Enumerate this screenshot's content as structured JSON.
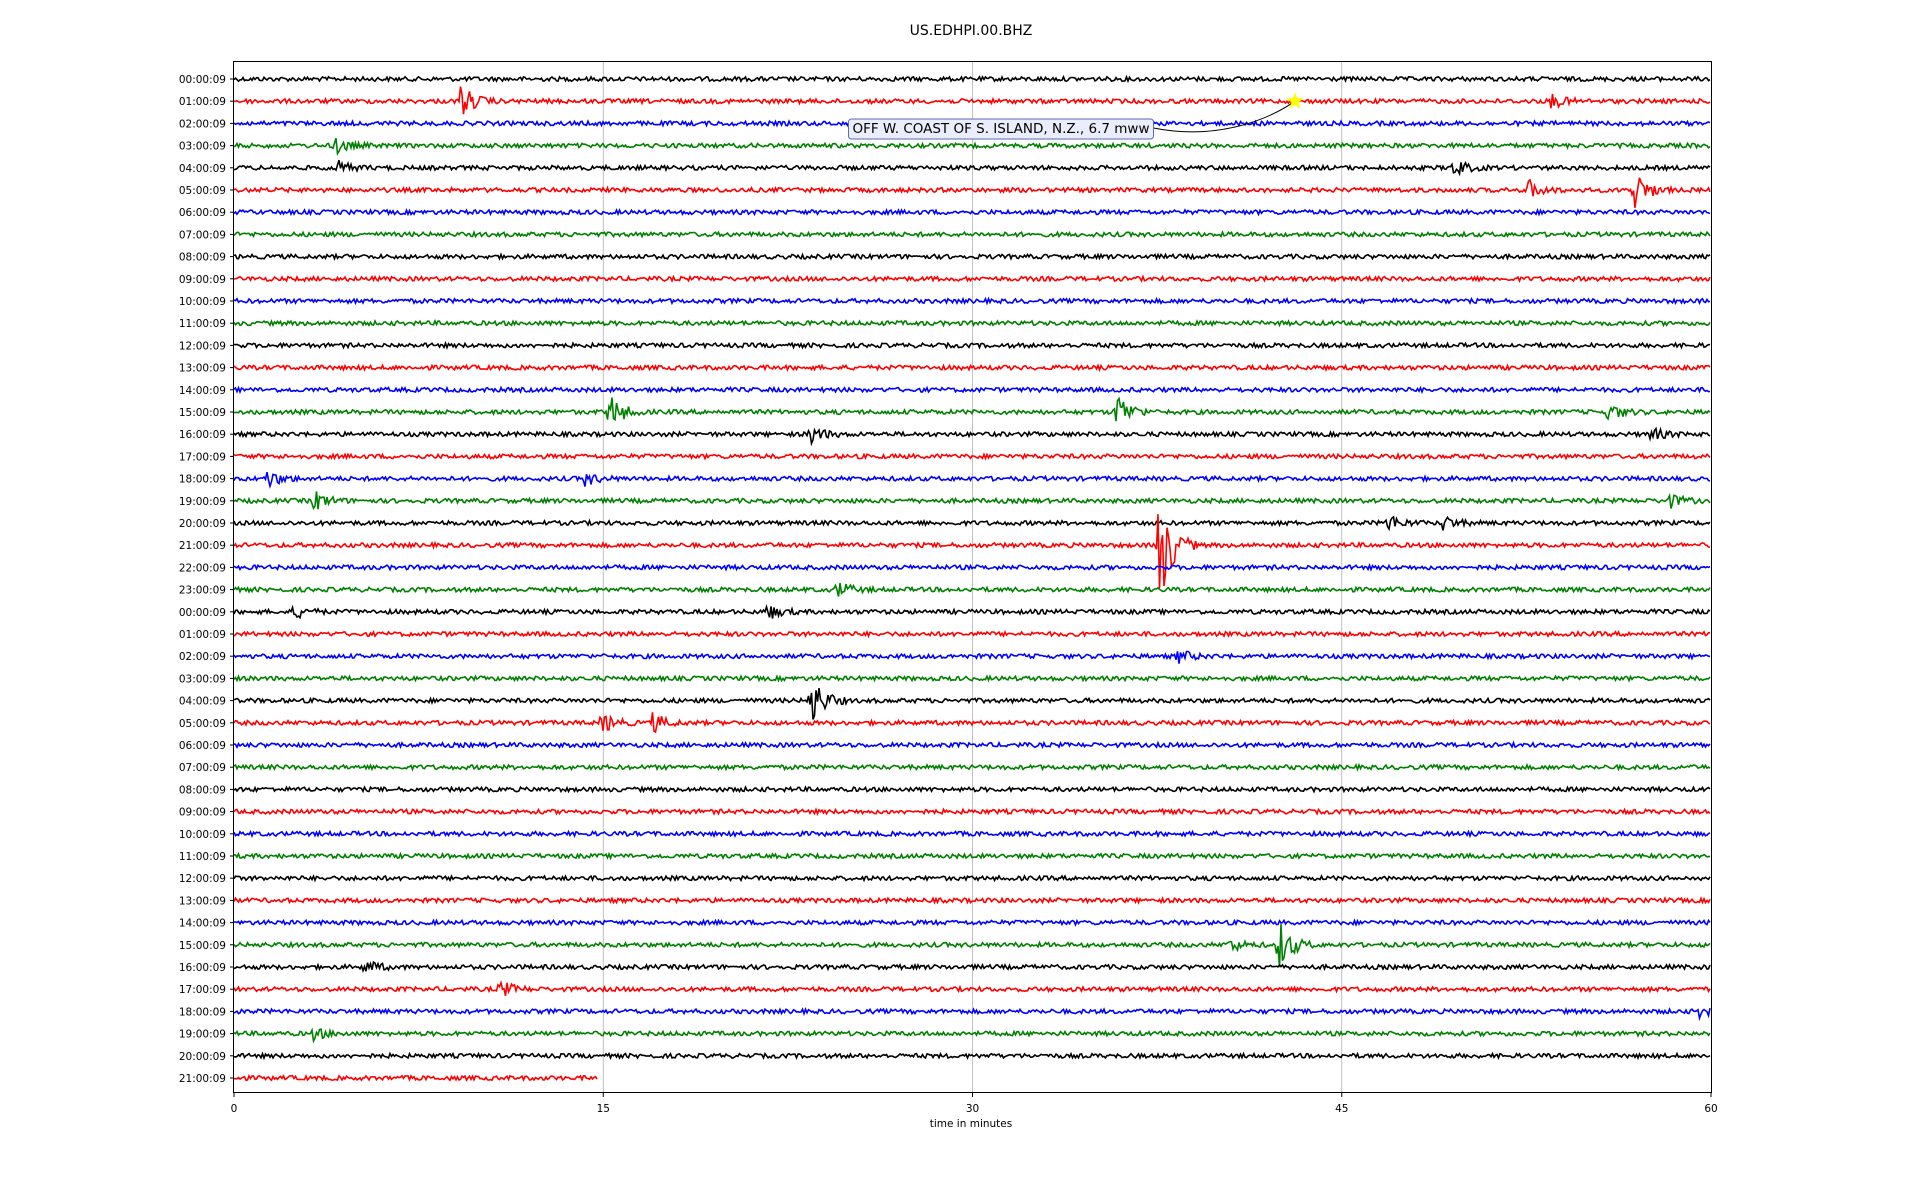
{
  "chart_data": {
    "type": "line",
    "title": "US.EDHPI.00.BHZ",
    "xlabel": "time in minutes",
    "ylabel": "",
    "xlim": [
      0,
      60
    ],
    "x_ticks": [
      "0",
      "15",
      "30",
      "45",
      "60"
    ],
    "grid": "vertical",
    "row_colors": [
      "#000000",
      "#ff0000",
      "#0000ff",
      "#008000"
    ],
    "row_labels": [
      "00:00:09",
      "01:00:09",
      "02:00:09",
      "03:00:09",
      "04:00:09",
      "05:00:09",
      "06:00:09",
      "07:00:09",
      "08:00:09",
      "09:00:09",
      "10:00:09",
      "11:00:09",
      "12:00:09",
      "13:00:09",
      "14:00:09",
      "15:00:09",
      "16:00:09",
      "17:00:09",
      "18:00:09",
      "19:00:09",
      "20:00:09",
      "21:00:09",
      "22:00:09",
      "23:00:09",
      "00:00:09",
      "01:00:09",
      "02:00:09",
      "03:00:09",
      "04:00:09",
      "05:00:09",
      "06:00:09",
      "07:00:09",
      "08:00:09",
      "09:00:09",
      "10:00:09",
      "11:00:09",
      "12:00:09",
      "13:00:09",
      "14:00:09",
      "15:00:09",
      "16:00:09",
      "17:00:09",
      "18:00:09",
      "19:00:09",
      "20:00:09",
      "21:00:09"
    ],
    "last_row_end_minute": 14.8,
    "events": [
      {
        "row": 1,
        "minute": 9.2,
        "amp": 1.5
      },
      {
        "row": 1,
        "minute": 53.5,
        "amp": 0.6
      },
      {
        "row": 3,
        "minute": 4.1,
        "amp": 0.7
      },
      {
        "row": 4,
        "minute": 4.0,
        "amp": 0.8
      },
      {
        "row": 4,
        "minute": 49.5,
        "amp": 0.8
      },
      {
        "row": 5,
        "minute": 52.5,
        "amp": 0.9
      },
      {
        "row": 5,
        "minute": 56.8,
        "amp": 2.0
      },
      {
        "row": 15,
        "minute": 15.2,
        "amp": 1.7
      },
      {
        "row": 15,
        "minute": 35.8,
        "amp": 1.8
      },
      {
        "row": 15,
        "minute": 55.8,
        "amp": 0.8
      },
      {
        "row": 16,
        "minute": 23.4,
        "amp": 0.8
      },
      {
        "row": 16,
        "minute": 57.5,
        "amp": 0.6
      },
      {
        "row": 18,
        "minute": 1.3,
        "amp": 0.8
      },
      {
        "row": 18,
        "minute": 14.2,
        "amp": 0.6
      },
      {
        "row": 19,
        "minute": 3.2,
        "amp": 0.9
      },
      {
        "row": 19,
        "minute": 58.2,
        "amp": 0.7
      },
      {
        "row": 20,
        "minute": 46.8,
        "amp": 0.8
      },
      {
        "row": 20,
        "minute": 49.1,
        "amp": 0.6
      },
      {
        "row": 21,
        "minute": 37.5,
        "amp": 6.2
      },
      {
        "row": 23,
        "minute": 24.5,
        "amp": 0.7
      },
      {
        "row": 24,
        "minute": 2.4,
        "amp": 0.6
      },
      {
        "row": 24,
        "minute": 21.6,
        "amp": 0.7
      },
      {
        "row": 26,
        "minute": 38.3,
        "amp": 0.6
      },
      {
        "row": 28,
        "minute": 23.4,
        "amp": 2.3
      },
      {
        "row": 29,
        "minute": 14.9,
        "amp": 0.9
      },
      {
        "row": 29,
        "minute": 17.0,
        "amp": 0.8
      },
      {
        "row": 39,
        "minute": 42.4,
        "amp": 2.3
      },
      {
        "row": 39,
        "minute": 40.4,
        "amp": 0.6
      },
      {
        "row": 40,
        "minute": 5.3,
        "amp": 0.6
      },
      {
        "row": 41,
        "minute": 10.8,
        "amp": 0.7
      },
      {
        "row": 42,
        "minute": 59.5,
        "amp": 0.5
      },
      {
        "row": 43,
        "minute": 3.2,
        "amp": 0.5
      }
    ],
    "annotation": {
      "text": "OFF W. COAST OF S. ISLAND, N.Z., 6.7 mww",
      "row": 1,
      "minute": 43.1,
      "marker": "star",
      "marker_color": "#ffff00"
    }
  }
}
